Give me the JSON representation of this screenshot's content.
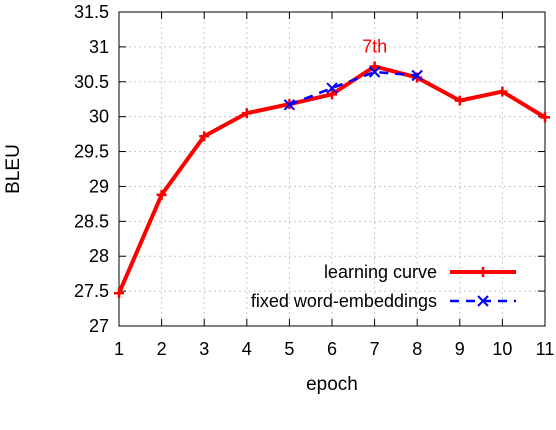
{
  "chart_data": {
    "type": "line",
    "title": "",
    "xlabel": "epoch",
    "ylabel": "BLEU",
    "xlim": [
      1,
      11
    ],
    "ylim": [
      27,
      31.5
    ],
    "x_ticks": [
      1,
      2,
      3,
      4,
      5,
      6,
      7,
      8,
      9,
      10,
      11
    ],
    "y_ticks": [
      "27",
      "27.5",
      "28",
      "28.5",
      "29",
      "29.5",
      "30",
      "30.5",
      "31",
      "31.5"
    ],
    "grid": true,
    "legend_position": "bottom-right",
    "series": [
      {
        "name": "learning curve",
        "color": "#ff0000",
        "style": "solid",
        "marker": "plus",
        "x": [
          1,
          2,
          3,
          4,
          5,
          6,
          7,
          8,
          9,
          10,
          11
        ],
        "y": [
          27.47,
          28.88,
          29.72,
          30.05,
          30.18,
          30.32,
          30.72,
          30.56,
          30.23,
          30.36,
          29.99
        ]
      },
      {
        "name": "fixed word-embeddings",
        "color": "#0000ff",
        "style": "dashed",
        "marker": "cross",
        "x": [
          5,
          6,
          7,
          8
        ],
        "y": [
          30.17,
          30.41,
          30.64,
          30.59
        ]
      }
    ],
    "annotations": [
      {
        "text": "7th",
        "x": 7,
        "y": 30.72,
        "color": "#ff0000"
      }
    ]
  }
}
